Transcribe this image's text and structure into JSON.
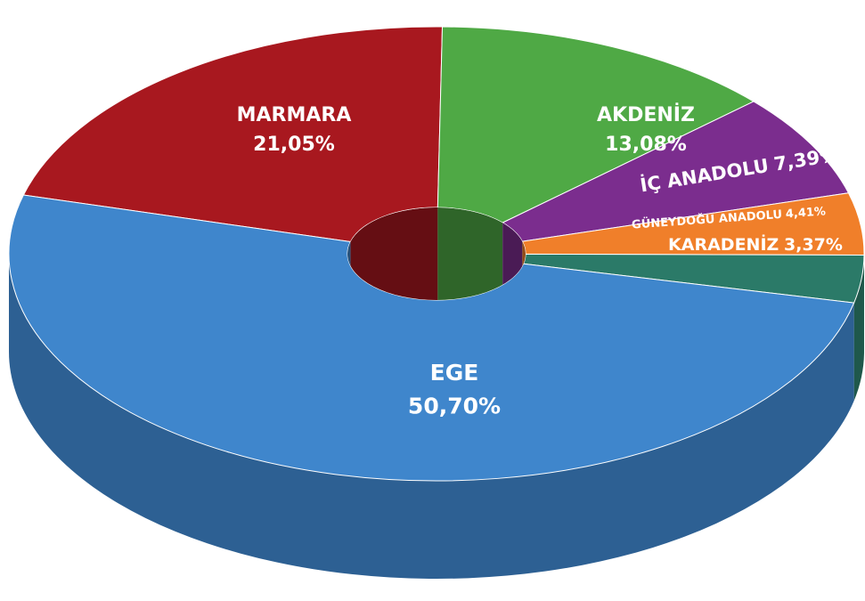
{
  "chart_data": {
    "type": "pie",
    "categories": [
      "MARMARA",
      "AKDENİZ",
      "İÇ ANADOLU",
      "GÜNEYDOĞU ANADOLU",
      "KARADENİZ",
      "EGE"
    ],
    "values": [
      21.05,
      13.08,
      7.39,
      4.41,
      3.37,
      50.7
    ],
    "value_labels": [
      "21,05%",
      "13,08%",
      "7,39%",
      "4,41%",
      "3,37%",
      "50,70%"
    ],
    "colors": [
      "#a8181f",
      "#4fa945",
      "#7b2d8e",
      "#f07f2a",
      "#2b7a68",
      "#3f86cc"
    ]
  }
}
